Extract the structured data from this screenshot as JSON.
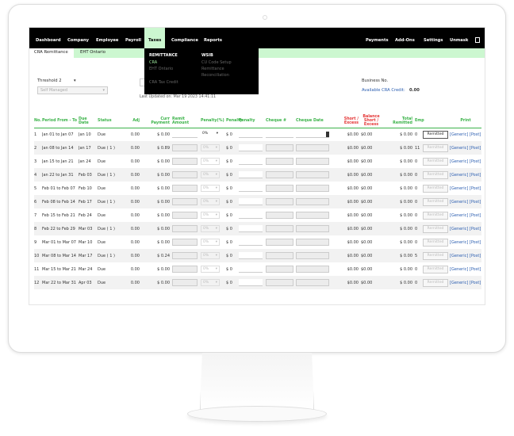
{
  "nav": {
    "items": [
      "Dashboard",
      "Company",
      "Employee",
      "Payroll",
      "Taxes",
      "Compliance",
      "Reports"
    ],
    "right": [
      "Payments",
      "Add-Ons",
      "Settings",
      "Unmask"
    ],
    "active": "Taxes",
    "accent": "#ccf7d0"
  },
  "subnav": {
    "tabs": [
      "CRA Remittance",
      "EHT Ontario"
    ]
  },
  "dropdown": {
    "col1_header": "REMITTANCE",
    "col1": [
      "CRA",
      "EHT Ontario",
      "CRA Tax Credit"
    ],
    "col2_header": "WSIB",
    "col2": [
      "CU Code Setup",
      "Remittance",
      "Reconciliation"
    ]
  },
  "filters": {
    "threshold": "Threshold 2",
    "mode": "Self Managed",
    "last_updated": "Last Updated on: Mar 19 2023 14:41:11"
  },
  "info": {
    "business_label": "Business No.",
    "credit_label": "Available CRA Credit:",
    "credit_value": "0.00"
  },
  "table": {
    "headers": [
      "No.",
      "Period From - To",
      "Due Date",
      "Status",
      "Adj",
      "Curr Payment",
      "Remit Amount",
      "Penalty(%)",
      "Penalty",
      "Penalty",
      "Cheque #",
      "Cheque Date",
      "Short / Excess",
      "Balance Short / Excess",
      "Total Remitted",
      "Emp",
      "",
      "Print"
    ],
    "remitted_label": "Remitted",
    "generic_label": "[Generic]",
    "post_label": "[Post]",
    "rows": [
      [
        "1",
        "Jan 01 to Jan 07",
        "Jan 10",
        "Due",
        "0.00",
        "$ 0.00",
        "0%",
        "$ 0",
        "$0.00",
        "$0.00",
        "$ 0.00",
        "0"
      ],
      [
        "2",
        "Jan 08 to Jan 14",
        "Jan 17",
        "Due ( 1 )",
        "0.00",
        "$ 0.89",
        "0%",
        "$ 0",
        "$0.00",
        "$0.00",
        "$ 0.00",
        "11"
      ],
      [
        "3",
        "Jan 15 to Jan 21",
        "Jan 24",
        "Due",
        "0.00",
        "$ 0.00",
        "0%",
        "$ 0",
        "$0.00",
        "$0.00",
        "$ 0.00",
        "0"
      ],
      [
        "4",
        "Jan 22 to Jan 31",
        "Feb 03",
        "Due ( 1 )",
        "0.00",
        "$ 0.00",
        "0%",
        "$ 0",
        "$0.00",
        "$0.00",
        "$ 0.00",
        "0"
      ],
      [
        "5",
        "Feb 01 to Feb 07",
        "Feb 10",
        "Due",
        "0.00",
        "$ 0.00",
        "0%",
        "$ 0",
        "$0.00",
        "$0.00",
        "$ 0.00",
        "0"
      ],
      [
        "6",
        "Feb 08 to Feb 14",
        "Feb 17",
        "Due ( 1 )",
        "0.00",
        "$ 0.00",
        "0%",
        "$ 0",
        "$0.00",
        "$0.00",
        "$ 0.00",
        "0"
      ],
      [
        "7",
        "Feb 15 to Feb 21",
        "Feb 24",
        "Due",
        "0.00",
        "$ 0.00",
        "0%",
        "$ 0",
        "$0.00",
        "$0.00",
        "$ 0.00",
        "0"
      ],
      [
        "8",
        "Feb 22 to Feb 29",
        "Mar 03",
        "Due ( 1 )",
        "0.00",
        "$ 0.00",
        "0%",
        "$ 0",
        "$0.00",
        "$0.00",
        "$ 0.00",
        "0"
      ],
      [
        "9",
        "Mar 01 to Mar 07",
        "Mar 10",
        "Due",
        "0.00",
        "$ 0.00",
        "0%",
        "$ 0",
        "$0.00",
        "$0.00",
        "$ 0.00",
        "0"
      ],
      [
        "10",
        "Mar 08 to Mar 14",
        "Mar 17",
        "Due ( 1 )",
        "0.00",
        "$ 0.24",
        "0%",
        "$ 0",
        "$0.00",
        "$0.00",
        "$ 0.00",
        "5"
      ],
      [
        "11",
        "Mar 15 to Mar 21",
        "Mar 24",
        "Due",
        "0.00",
        "$ 0.00",
        "0%",
        "$ 0",
        "$0.00",
        "$0.00",
        "$ 0.00",
        "0"
      ],
      [
        "12",
        "Mar 22 to Mar 31",
        "Apr 03",
        "Due",
        "0.00",
        "$ 0.00",
        "0%",
        "$ 0",
        "$0.00",
        "$0.00",
        "$ 0.00",
        "0"
      ]
    ]
  }
}
